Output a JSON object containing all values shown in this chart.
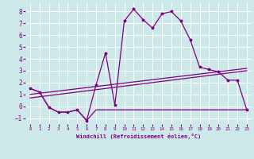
{
  "bg_color": "#cce8e8",
  "line_color": "#800080",
  "grid_color": "#ffffff",
  "xlim": [
    -0.5,
    23.5
  ],
  "ylim": [
    -1.5,
    8.7
  ],
  "xticks": [
    0,
    1,
    2,
    3,
    4,
    5,
    6,
    7,
    8,
    9,
    10,
    11,
    12,
    13,
    14,
    15,
    16,
    17,
    18,
    19,
    20,
    21,
    22,
    23
  ],
  "yticks": [
    -1,
    0,
    1,
    2,
    3,
    4,
    5,
    6,
    7,
    8
  ],
  "xlabel": "Windchill (Refroidissement éolien,°C)",
  "line1_x": [
    0,
    1,
    2,
    3,
    4,
    5,
    6,
    7,
    8,
    9,
    10,
    11,
    12,
    13,
    14,
    15,
    16,
    17,
    18,
    19,
    20,
    21,
    22,
    23
  ],
  "line1_y": [
    1.5,
    1.2,
    -0.1,
    -0.5,
    -0.5,
    -0.3,
    -1.2,
    1.8,
    4.5,
    0.1,
    7.2,
    8.2,
    7.3,
    6.6,
    7.8,
    8.0,
    7.2,
    5.6,
    3.3,
    3.1,
    2.9,
    2.2,
    2.2,
    -0.3
  ],
  "line2_x": [
    0,
    1,
    2,
    3,
    4,
    5,
    6,
    7,
    8,
    9,
    10,
    11,
    12,
    13,
    14,
    15,
    16,
    17,
    18,
    19,
    20,
    21,
    22,
    23
  ],
  "line2_y": [
    1.5,
    1.2,
    -0.1,
    -0.5,
    -0.5,
    -0.3,
    -1.2,
    -0.3,
    -0.3,
    -0.3,
    -0.3,
    -0.3,
    -0.3,
    -0.3,
    -0.3,
    -0.3,
    -0.3,
    -0.3,
    -0.3,
    -0.3,
    -0.3,
    -0.3,
    -0.3,
    -0.3
  ],
  "line3_x": [
    0,
    23
  ],
  "line3_y": [
    1.0,
    3.2
  ],
  "line4_x": [
    0,
    23
  ],
  "line4_y": [
    0.7,
    3.0
  ],
  "figsize": [
    3.2,
    2.0
  ],
  "dpi": 100
}
